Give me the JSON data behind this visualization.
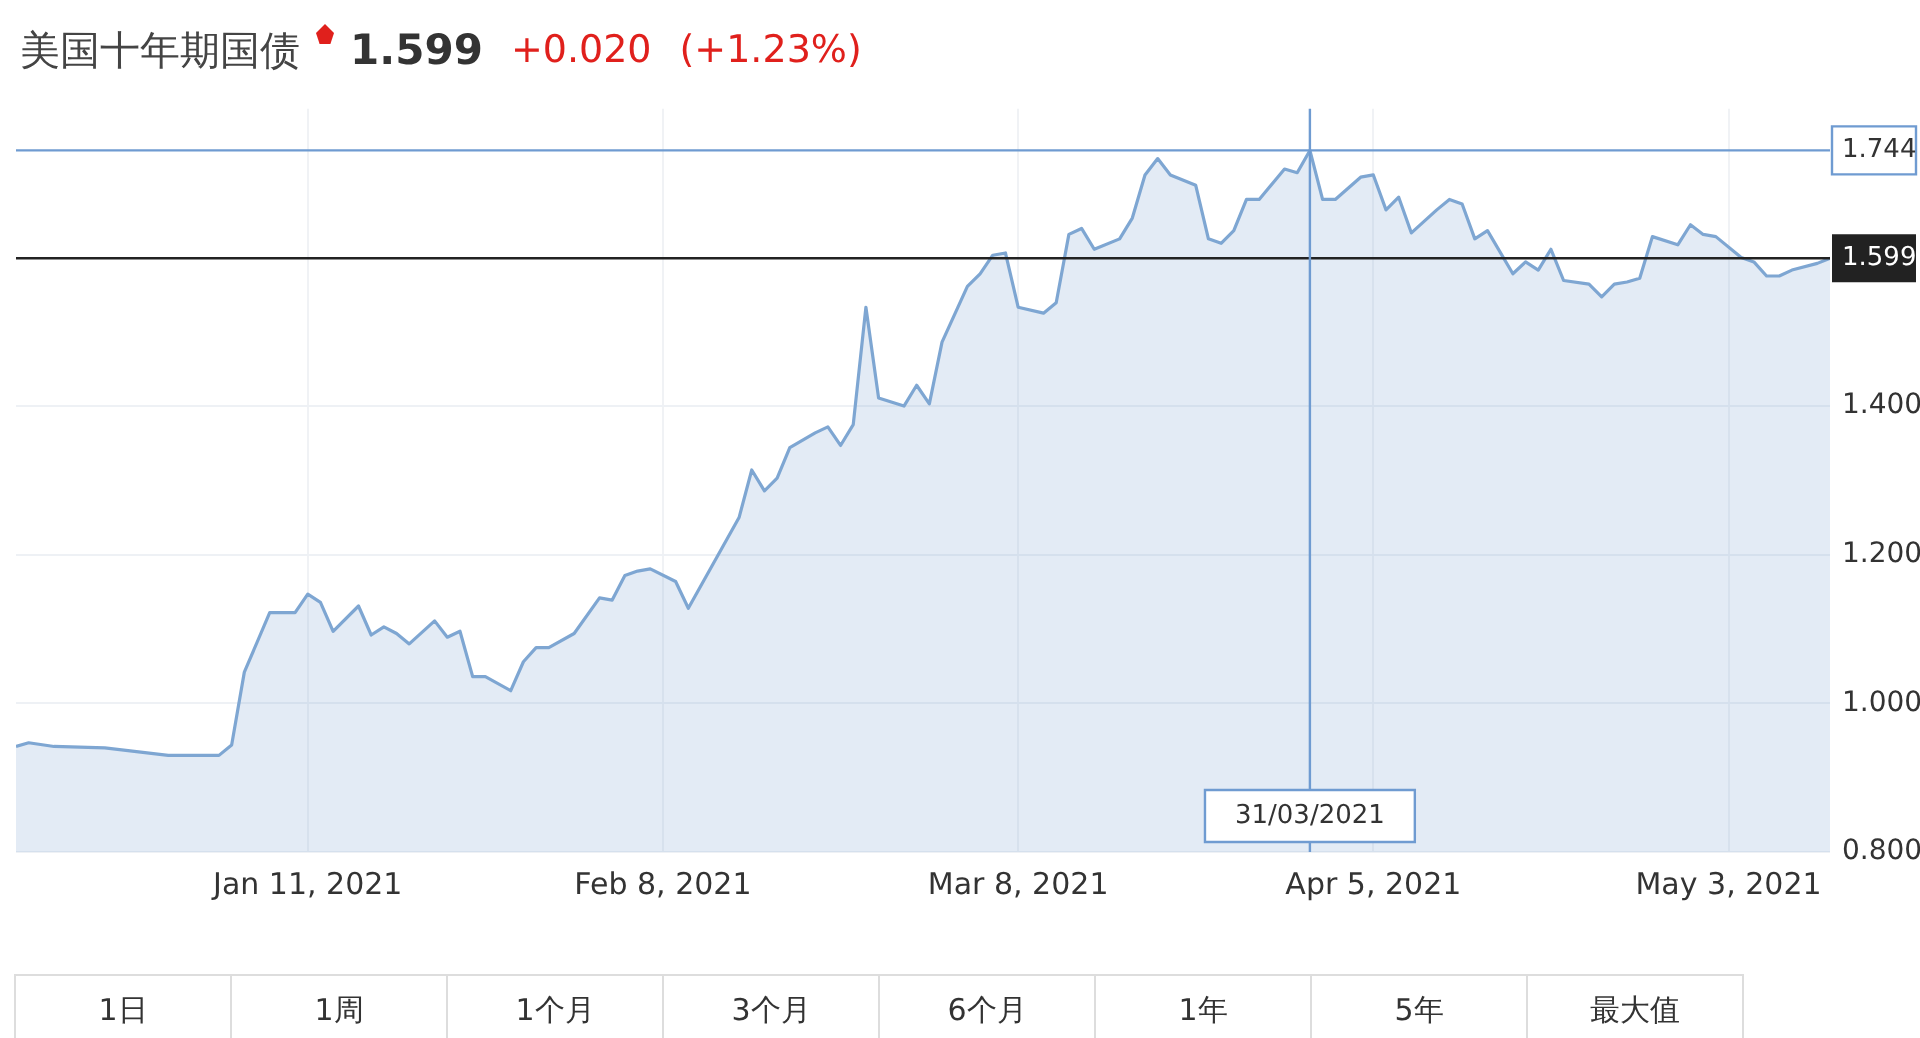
{
  "chart_data": {
    "type": "area",
    "title": "美国十年期国债",
    "subtitle": "1.599",
    "annotations": [
      "+0.020",
      "(+1.23%)",
      "1日",
      "1周",
      "1个月",
      "3个月",
      "6个月",
      "1年",
      "5年",
      "最大值"
    ],
    "x": [
      "2020-12-19",
      "2020-12-20",
      "2020-12-22",
      "2020-12-26",
      "2020-12-31",
      "2021-01-04",
      "2021-01-05",
      "2021-01-06",
      "2021-01-08",
      "2021-01-10",
      "2021-01-11",
      "2021-01-12",
      "2021-01-13",
      "2021-01-15",
      "2021-01-16",
      "2021-01-17",
      "2021-01-18",
      "2021-01-19",
      "2021-01-21",
      "2021-01-22",
      "2021-01-23",
      "2021-01-24",
      "2021-01-25",
      "2021-01-27",
      "2021-01-28",
      "2021-01-29",
      "2021-01-30",
      "2021-02-01",
      "2021-02-03",
      "2021-02-04",
      "2021-02-05",
      "2021-02-06",
      "2021-02-07",
      "2021-02-09",
      "2021-02-10",
      "2021-02-14",
      "2021-02-15",
      "2021-02-16",
      "2021-02-17",
      "2021-02-18",
      "2021-02-20",
      "2021-02-21",
      "2021-02-22",
      "2021-02-23",
      "2021-02-24",
      "2021-02-25",
      "2021-02-27",
      "2021-02-28",
      "2021-03-01",
      "2021-03-02",
      "2021-03-04",
      "2021-03-05",
      "2021-03-06",
      "2021-03-07",
      "2021-03-08",
      "2021-03-10",
      "2021-03-11",
      "2021-03-12",
      "2021-03-13",
      "2021-03-14",
      "2021-03-16",
      "2021-03-17",
      "2021-03-18",
      "2021-03-19",
      "2021-03-20",
      "2021-03-22",
      "2021-03-23",
      "2021-03-24",
      "2021-03-25",
      "2021-03-26",
      "2021-03-27",
      "2021-03-29",
      "2021-03-30",
      "2021-03-31",
      "2021-04-01",
      "2021-04-02",
      "2021-04-04",
      "2021-04-05",
      "2021-04-06",
      "2021-04-07",
      "2021-04-08",
      "2021-04-10",
      "2021-04-11",
      "2021-04-12",
      "2021-04-13",
      "2021-04-14",
      "2021-04-16",
      "2021-04-17",
      "2021-04-18",
      "2021-04-19",
      "2021-04-20",
      "2021-04-22",
      "2021-04-23",
      "2021-04-24",
      "2021-04-25",
      "2021-04-26",
      "2021-04-27",
      "2021-04-29",
      "2021-04-30",
      "2021-05-01",
      "2021-05-02",
      "2021-05-04",
      "2021-05-05",
      "2021-05-06",
      "2021-05-07",
      "2021-05-08",
      "2021-05-10",
      "2021-05-11"
    ],
    "series": [
      {
        "color": "#7ea6d2",
        "values": [
          0.942,
          0.947,
          0.942,
          0.94,
          0.93,
          0.93,
          0.944,
          1.042,
          1.122,
          1.122,
          1.147,
          1.136,
          1.097,
          1.131,
          1.092,
          1.103,
          1.094,
          1.08,
          1.111,
          1.089,
          1.097,
          1.036,
          1.036,
          1.017,
          1.056,
          1.075,
          1.075,
          1.094,
          1.142,
          1.139,
          1.172,
          1.178,
          1.181,
          1.164,
          1.128,
          1.25,
          1.314,
          1.286,
          1.303,
          1.344,
          1.364,
          1.372,
          1.347,
          1.375,
          1.533,
          1.411,
          1.4,
          1.428,
          1.403,
          1.486,
          1.561,
          1.578,
          1.603,
          1.606,
          1.533,
          1.525,
          1.539,
          1.631,
          1.639,
          1.611,
          1.625,
          1.653,
          1.711,
          1.733,
          1.711,
          1.697,
          1.625,
          1.619,
          1.636,
          1.678,
          1.678,
          1.719,
          1.714,
          1.744,
          1.678,
          1.678,
          1.708,
          1.711,
          1.664,
          1.681,
          1.633,
          1.664,
          1.678,
          1.672,
          1.625,
          1.636,
          1.578,
          1.594,
          1.583,
          1.611,
          1.569,
          1.564,
          1.547,
          1.564,
          1.567,
          1.572,
          1.628,
          1.617,
          1.644,
          1.631,
          1.628,
          1.6,
          1.594,
          1.575,
          1.575,
          1.583,
          1.592,
          1.599
        ]
      }
    ],
    "xlim": [
      "2020-12-19",
      "2021-05-11"
    ],
    "xticks": [
      {
        "value": "2021-01-11",
        "label": "Jan 11, 2021"
      },
      {
        "value": "2021-02-08",
        "label": "Feb 8, 2021"
      },
      {
        "value": "2021-03-08",
        "label": "Mar 8, 2021"
      },
      {
        "value": "2021-04-05",
        "label": "Apr 5, 2021"
      },
      {
        "value": "2021-05-03",
        "label": "May 3, 2021"
      }
    ],
    "ylim": [
      0.8,
      1.8
    ],
    "yticks": [
      {
        "value": 0.8,
        "label": "0.800"
      },
      {
        "value": 1.0,
        "label": "1.000"
      },
      {
        "value": 1.2,
        "label": "1.200"
      },
      {
        "value": 1.4,
        "label": "1.400"
      }
    ],
    "ref_lines": [
      {
        "axis": "y",
        "value": 1.744,
        "label": "1.744",
        "color": "#6f9bd1"
      },
      {
        "axis": "y",
        "value": 1.599,
        "label": "1.599",
        "color": "#222222"
      },
      {
        "axis": "x",
        "value": "2021-03-31",
        "label": "31/03/2021",
        "color": "#6f9bd1"
      }
    ],
    "grid": true,
    "legend": false,
    "marker": "none",
    "line_style": "solid"
  }
}
